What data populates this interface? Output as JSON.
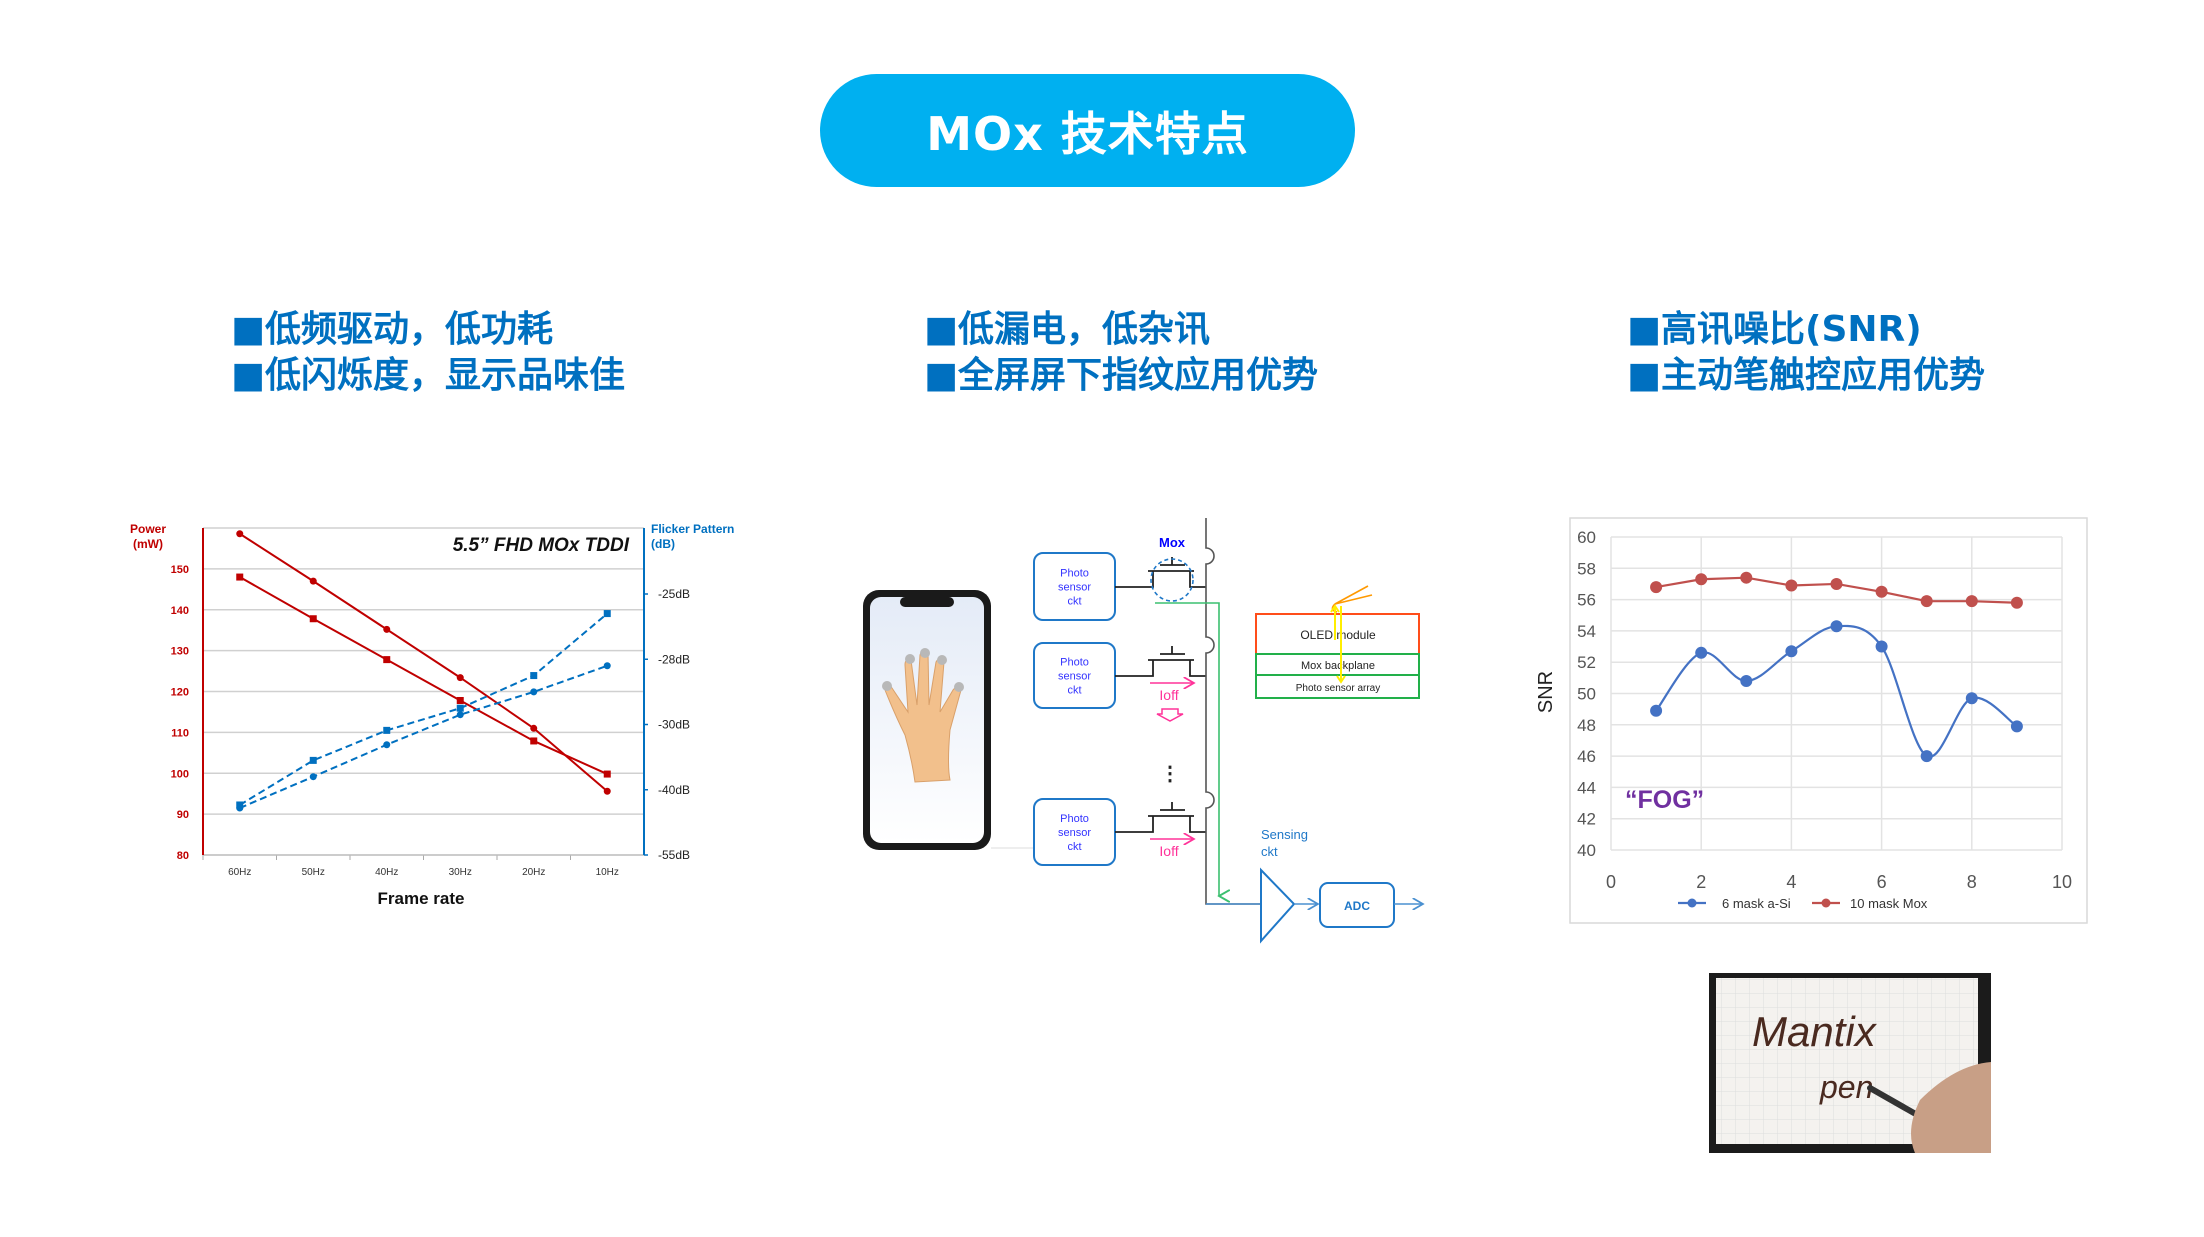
{
  "title": "MOx 技术特点",
  "colors": {
    "pill": "#00b0f0",
    "heading": "#0070c0",
    "power": "#c00000",
    "flicker": "#0070c0",
    "asi": "#4472c4",
    "mox": "#c0504d",
    "fog": "#7030a0"
  },
  "features": {
    "left": [
      "■低频驱动，低功耗",
      "■低闪烁度，显示品味佳"
    ],
    "middle": [
      "■低漏电，低杂讯",
      "■全屏屏下指纹应用优势"
    ],
    "right": [
      "■高讯噪比(SNR)",
      "■主动笔触控应用优势"
    ]
  },
  "chart_data": [
    {
      "type": "line",
      "title": "5.5” FHD MOx TDDI",
      "xlabel": "Frame rate",
      "categories": [
        "60Hz",
        "50Hz",
        "40Hz",
        "30Hz",
        "20Hz",
        "10Hz"
      ],
      "y_left": {
        "label_lines": [
          "Power",
          "(mW)"
        ],
        "ticks": [
          80,
          90,
          100,
          110,
          120,
          130,
          140,
          150
        ],
        "range": [
          80,
          160
        ]
      },
      "y_right": {
        "label_lines": [
          "Flicker Pattern",
          "(dB)"
        ],
        "tick_values": [
          -25,
          -28,
          -30,
          -40,
          -55
        ],
        "tick_labels": [
          "-25dB",
          "-28dB",
          "-30dB",
          "-40dB",
          "-55dB"
        ]
      },
      "grid": true,
      "series": [
        {
          "axis": "left",
          "marker": "circle",
          "dashed": false,
          "color": "#c00000",
          "values": [
            158.6,
            147,
            135.2,
            123.4,
            111,
            95.6
          ]
        },
        {
          "axis": "left",
          "marker": "square",
          "dashed": false,
          "color": "#c00000",
          "values": [
            148,
            137.8,
            127.8,
            117.8,
            107.9,
            99.8
          ]
        },
        {
          "axis": "right",
          "marker": "square",
          "dashed": true,
          "color": "#0070c0",
          "values": [
            -43.5,
            -35.5,
            -30.9,
            -29.5,
            -28.5,
            -25.9
          ]
        },
        {
          "axis": "right",
          "marker": "circle",
          "dashed": true,
          "color": "#0070c0",
          "values": [
            -44.2,
            -38,
            -33.1,
            -29.7,
            -29.0,
            -28.2
          ]
        }
      ]
    },
    {
      "type": "line",
      "ylabel": "SNR",
      "xlim": [
        0,
        10
      ],
      "ylim": [
        40,
        60
      ],
      "xticks": [
        0,
        2,
        4,
        6,
        8,
        10
      ],
      "yticks": [
        40,
        42,
        44,
        46,
        48,
        50,
        52,
        54,
        56,
        58,
        60
      ],
      "grid": true,
      "legend": "bottom",
      "annotation": "“FOG”",
      "series": [
        {
          "name": "6 mask a-Si",
          "color": "#4472c4",
          "smooth": true,
          "x": [
            1,
            2,
            3,
            4,
            5,
            6,
            7,
            8,
            9
          ],
          "y": [
            48.9,
            52.6,
            50.8,
            52.7,
            54.3,
            53.0,
            46.0,
            49.7,
            47.9
          ]
        },
        {
          "name": "10 mask Mox",
          "color": "#c0504d",
          "smooth": false,
          "x": [
            1,
            2,
            3,
            4,
            5,
            6,
            7,
            8,
            9
          ],
          "y": [
            56.8,
            57.3,
            57.4,
            56.9,
            57.0,
            56.5,
            55.9,
            55.9,
            55.8
          ]
        }
      ]
    }
  ],
  "diagram": {
    "photo_sensor_label": [
      "Photo",
      "sensor",
      "ckt"
    ],
    "mox_label": "Mox",
    "ioff_label": "Ioff",
    "ellipsis": "⋮",
    "stack_layers": [
      "OLED module",
      "Mox backplane",
      "Photo sensor array"
    ],
    "sensing_label": [
      "Sensing",
      "ckt"
    ],
    "adc_label": "ADC"
  },
  "pen_image": {
    "handwriting": [
      "Mantix",
      "pen"
    ]
  }
}
